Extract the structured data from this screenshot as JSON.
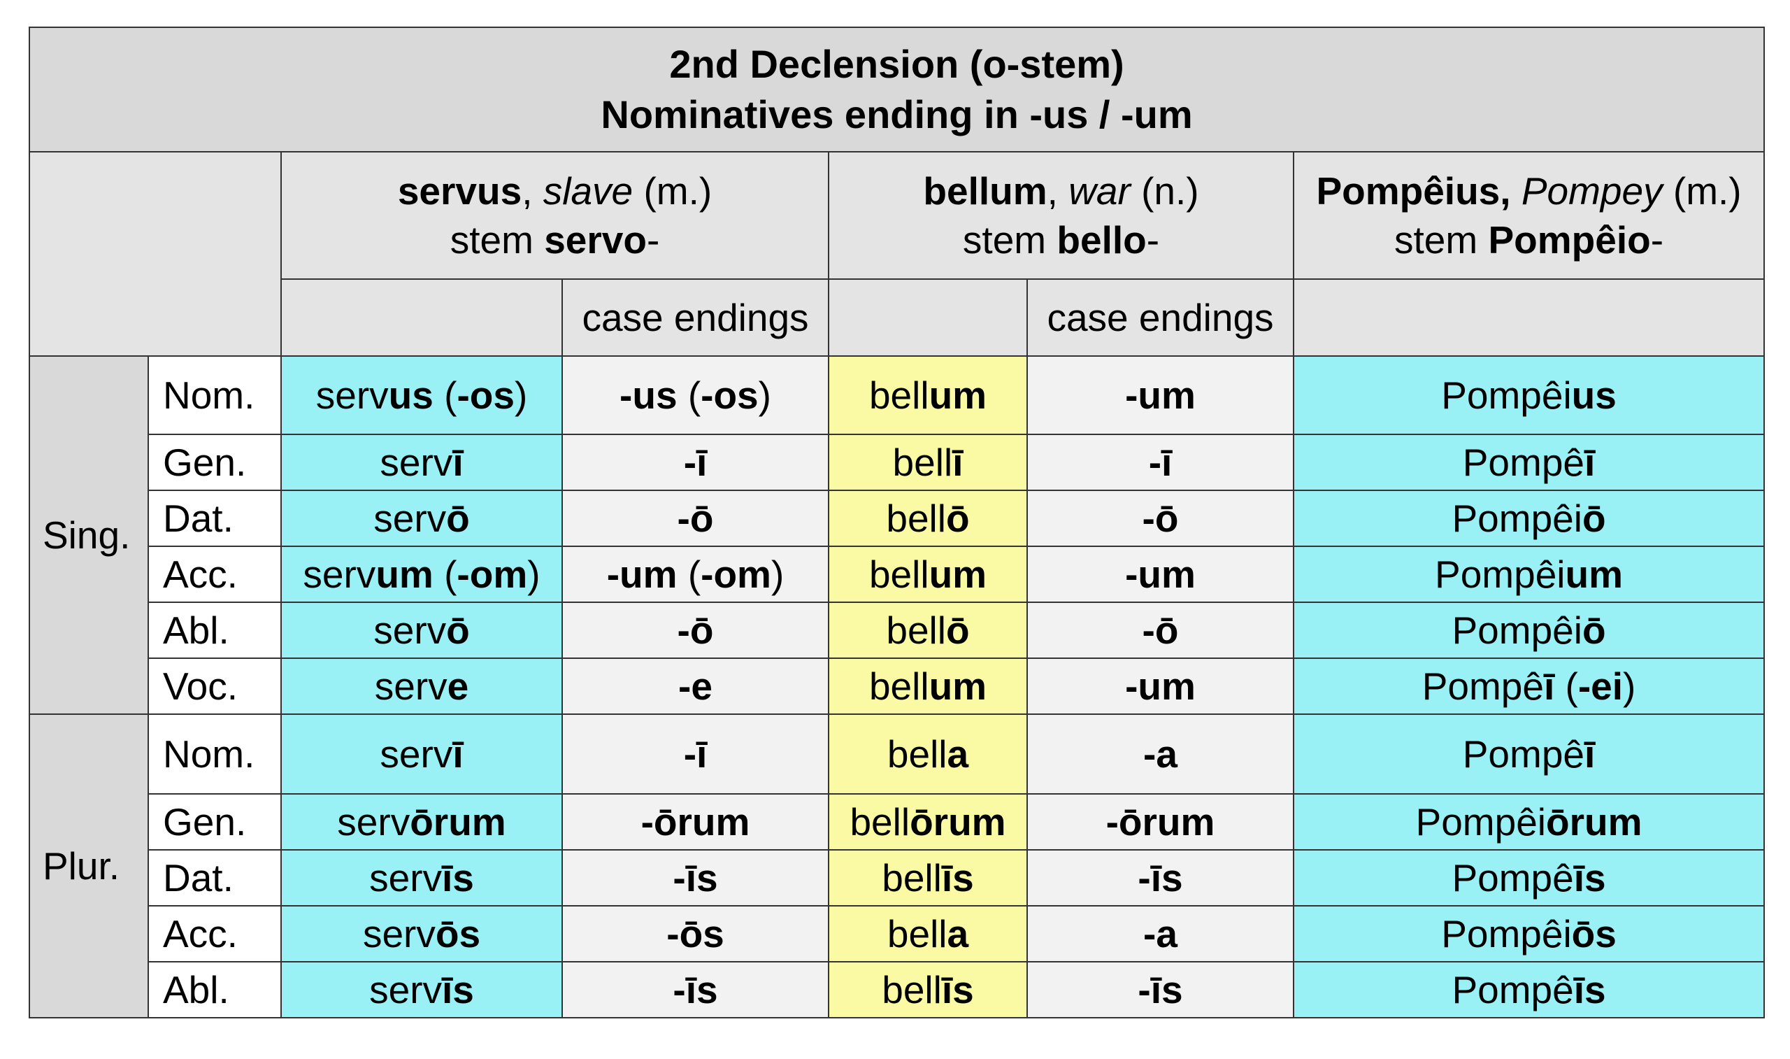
{
  "title": {
    "line1": "2nd Declension (o-stem)",
    "line2": "Nominatives ending in -us / -um"
  },
  "columns": {
    "servus": {
      "word": "servus",
      "meaning": "slave",
      "gender": "(m.)",
      "stem_prefix": "stem",
      "stem": "servo",
      "stem_suffix": "-"
    },
    "bellum": {
      "word": "bellum",
      "meaning": "war",
      "gender": "(n.)",
      "stem_prefix": "stem",
      "stem": "bello",
      "stem_suffix": "-"
    },
    "pompeius": {
      "word": "Pompêius,",
      "meaning": "Pompey",
      "gender": "(m.)",
      "stem_prefix": "stem",
      "stem": "Pompêio",
      "stem_suffix": "-"
    },
    "case_endings_label": "case endings",
    "separator": ","
  },
  "numbers": {
    "singular": "Sing.",
    "plural": "Plur."
  },
  "rows": [
    {
      "case": "Nom.",
      "servus": {
        "stem": "serv",
        "end": "us",
        "alt": "(-os)"
      },
      "servus_end": {
        "end": "-us",
        "alt": "(-os)"
      },
      "bellum": {
        "stem": "bell",
        "end": "um"
      },
      "bellum_end": "-um",
      "pompeius": {
        "stem": "Pompêi",
        "end": "us",
        "alt": ""
      }
    },
    {
      "case": "Gen.",
      "servus": {
        "stem": "serv",
        "end": "ī",
        "alt": ""
      },
      "servus_end": {
        "end": "-ī",
        "alt": ""
      },
      "bellum": {
        "stem": "bell",
        "end": "ī"
      },
      "bellum_end": "-ī",
      "pompeius": {
        "stem": "Pompê",
        "end": "ī",
        "alt": ""
      }
    },
    {
      "case": "Dat.",
      "servus": {
        "stem": "serv",
        "end": "ō",
        "alt": ""
      },
      "servus_end": {
        "end": "-ō",
        "alt": ""
      },
      "bellum": {
        "stem": "bell",
        "end": "ō"
      },
      "bellum_end": "-ō",
      "pompeius": {
        "stem": "Pompêi",
        "end": "ō",
        "alt": ""
      }
    },
    {
      "case": "Acc.",
      "servus": {
        "stem": "serv",
        "end": "um",
        "alt": "(-om)"
      },
      "servus_end": {
        "end": "-um",
        "alt": "(-om)"
      },
      "bellum": {
        "stem": "bell",
        "end": "um"
      },
      "bellum_end": "-um",
      "pompeius": {
        "stem": "Pompêi",
        "end": "um",
        "alt": ""
      }
    },
    {
      "case": "Abl.",
      "servus": {
        "stem": "serv",
        "end": "ō",
        "alt": ""
      },
      "servus_end": {
        "end": "-ō",
        "alt": ""
      },
      "bellum": {
        "stem": "bell",
        "end": "ō"
      },
      "bellum_end": "-ō",
      "pompeius": {
        "stem": "Pompêi",
        "end": "ō",
        "alt": ""
      }
    },
    {
      "case": "Voc.",
      "servus": {
        "stem": "serv",
        "end": "e",
        "alt": ""
      },
      "servus_end": {
        "end": "-e",
        "alt": ""
      },
      "bellum": {
        "stem": "bell",
        "end": "um"
      },
      "bellum_end": "-um",
      "pompeius": {
        "stem": "Pompê",
        "end": "ī",
        "alt": "(-ei)"
      }
    },
    {
      "case": "Nom.",
      "servus": {
        "stem": "serv",
        "end": "ī",
        "alt": ""
      },
      "servus_end": {
        "end": "-ī",
        "alt": ""
      },
      "bellum": {
        "stem": "bell",
        "end": "a"
      },
      "bellum_end": "-a",
      "pompeius": {
        "stem": "Pompê",
        "end": "ī",
        "alt": ""
      }
    },
    {
      "case": "Gen.",
      "servus": {
        "stem": "serv",
        "end": "ōrum",
        "alt": ""
      },
      "servus_end": {
        "end": "-ōrum",
        "alt": ""
      },
      "bellum": {
        "stem": "bell",
        "end": "ōrum"
      },
      "bellum_end": "-ōrum",
      "pompeius": {
        "stem": "Pompêi",
        "end": "ōrum",
        "alt": ""
      }
    },
    {
      "case": "Dat.",
      "servus": {
        "stem": "serv",
        "end": "īs",
        "alt": ""
      },
      "servus_end": {
        "end": "-īs",
        "alt": ""
      },
      "bellum": {
        "stem": "bell",
        "end": "īs"
      },
      "bellum_end": "-īs",
      "pompeius": {
        "stem": "Pompê",
        "end": "īs",
        "alt": ""
      }
    },
    {
      "case": "Acc.",
      "servus": {
        "stem": "serv",
        "end": "ōs",
        "alt": ""
      },
      "servus_end": {
        "end": "-ōs",
        "alt": ""
      },
      "bellum": {
        "stem": "bell",
        "end": "a"
      },
      "bellum_end": "-a",
      "pompeius": {
        "stem": "Pompêi",
        "end": "ōs",
        "alt": ""
      }
    },
    {
      "case": "Abl.",
      "servus": {
        "stem": "serv",
        "end": "īs",
        "alt": ""
      },
      "servus_end": {
        "end": "-īs",
        "alt": ""
      },
      "bellum": {
        "stem": "bell",
        "end": "īs"
      },
      "bellum_end": "-īs",
      "pompeius": {
        "stem": "Pompê",
        "end": "īs",
        "alt": ""
      }
    }
  ],
  "colors": {
    "header_gray": "#d9d9d9",
    "servus_cells": "#99f1f6",
    "bellum_cells": "#fafaa5",
    "ending_cells": "#f2f2f2"
  }
}
